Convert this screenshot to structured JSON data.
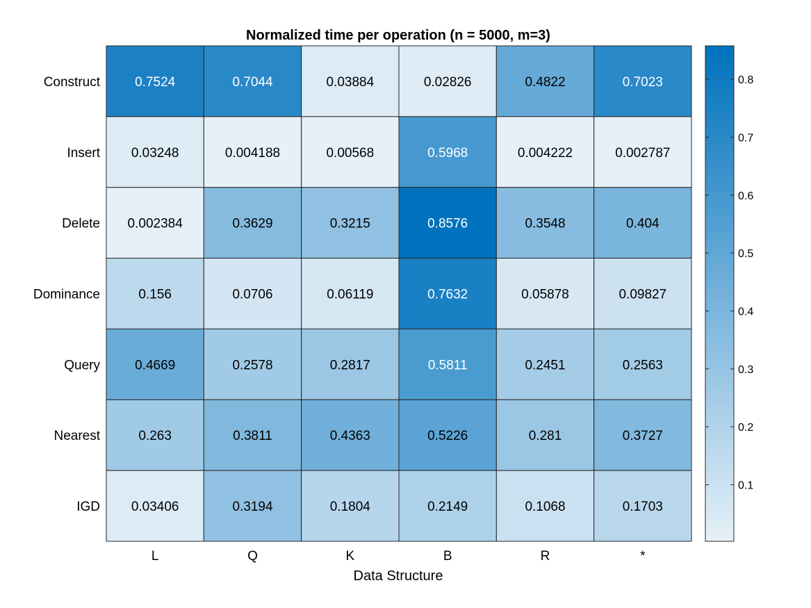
{
  "chart_data": {
    "type": "heatmap",
    "title": "Normalized time per operation (n = 5000, m=3)",
    "xlabel": "Data Structure",
    "ylabel": "",
    "x_categories": [
      "L",
      "Q",
      "K",
      "B",
      "R",
      "*"
    ],
    "y_categories": [
      "Construct",
      "Insert",
      "Delete",
      "Dominance",
      "Query",
      "Nearest",
      "IGD"
    ],
    "values": [
      [
        0.7524,
        0.7044,
        0.03884,
        0.02826,
        0.4822,
        0.7023
      ],
      [
        0.03248,
        0.004188,
        0.00568,
        0.5968,
        0.004222,
        0.002787
      ],
      [
        0.002384,
        0.3629,
        0.3215,
        0.8576,
        0.3548,
        0.404
      ],
      [
        0.156,
        0.0706,
        0.06119,
        0.7632,
        0.05878,
        0.09827
      ],
      [
        0.4669,
        0.2578,
        0.2817,
        0.5811,
        0.2451,
        0.2563
      ],
      [
        0.263,
        0.3811,
        0.4363,
        0.5226,
        0.281,
        0.3727
      ],
      [
        0.03406,
        0.3194,
        0.1804,
        0.2149,
        0.1068,
        0.1703
      ]
    ],
    "value_labels": [
      [
        "0.7524",
        "0.7044",
        "0.03884",
        "0.02826",
        "0.4822",
        "0.7023"
      ],
      [
        "0.03248",
        "0.004188",
        "0.00568",
        "0.5968",
        "0.004222",
        "0.002787"
      ],
      [
        "0.002384",
        "0.3629",
        "0.3215",
        "0.8576",
        "0.3548",
        "0.404"
      ],
      [
        "0.156",
        "0.0706",
        "0.06119",
        "0.7632",
        "0.05878",
        "0.09827"
      ],
      [
        "0.4669",
        "0.2578",
        "0.2817",
        "0.5811",
        "0.2451",
        "0.2563"
      ],
      [
        "0.263",
        "0.3811",
        "0.4363",
        "0.5226",
        "0.281",
        "0.3727"
      ],
      [
        "0.03406",
        "0.3194",
        "0.1804",
        "0.2149",
        "0.1068",
        "0.1703"
      ]
    ],
    "colorbar": {
      "range": [
        0.002384,
        0.8576
      ],
      "ticks": [
        0.1,
        0.2,
        0.3,
        0.4,
        0.5,
        0.6,
        0.7,
        0.8
      ],
      "tick_labels": [
        "0.1",
        "0.2",
        "0.3",
        "0.4",
        "0.5",
        "0.6",
        "0.7",
        "0.8"
      ],
      "color_low": "#e6f0f8",
      "color_high": "#0072bd"
    },
    "grid": true,
    "legend": "colorbar-right"
  }
}
